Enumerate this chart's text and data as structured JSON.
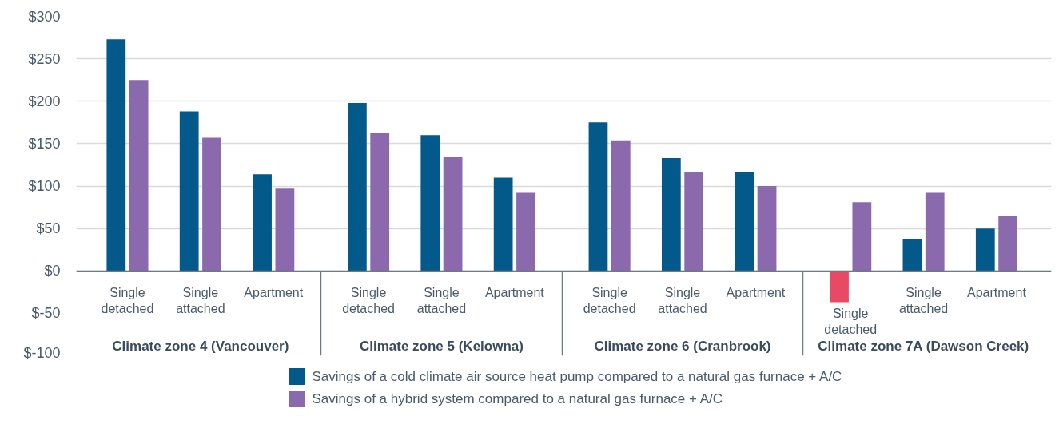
{
  "chart_data": {
    "type": "bar",
    "categories": [
      "Single detached",
      "Single attached",
      "Apartment",
      "Single detached",
      "Single attached",
      "Apartment",
      "Single detached",
      "Single attached",
      "Apartment",
      "Single detached",
      "Single attached",
      "Apartment"
    ],
    "series": [
      {
        "name": "Savings of a cold climate air source heat pump compared to a natural gas furnace + A/C",
        "color": "#02598a",
        "colors": [
          null,
          null,
          null,
          null,
          null,
          null,
          null,
          null,
          null,
          "#e84a66",
          null,
          null
        ],
        "values": [
          273,
          188,
          114,
          198,
          160,
          110,
          175,
          133,
          117,
          -37,
          38,
          50
        ]
      },
      {
        "name": "Savings of a hybrid system compared to a natural gas furnace + A/C",
        "color": "#8a69ad",
        "values": [
          225,
          157,
          97,
          163,
          134,
          92,
          154,
          116,
          100,
          81,
          92,
          65
        ]
      }
    ],
    "annotations": [
      "Climate zone 4 (Vancouver)",
      "Climate zone 5 (Kelowna)",
      "Climate zone 6 (Cranbrook)",
      "Climate zone 7A (Dawson Creek)"
    ],
    "ylim": [
      -100,
      300
    ],
    "yticks": [
      {
        "value": 300,
        "label": "$300"
      },
      {
        "value": 250,
        "label": "$250"
      },
      {
        "value": 200,
        "label": "$200"
      },
      {
        "value": 150,
        "label": "$150"
      },
      {
        "value": 100,
        "label": "$100"
      },
      {
        "value": 50,
        "label": "$50"
      },
      {
        "value": 0,
        "label": "$0"
      },
      {
        "value": -50,
        "label": "$-50"
      },
      {
        "value": -100,
        "label": "$-100"
      }
    ],
    "grid": "y",
    "legend": "bottom"
  }
}
